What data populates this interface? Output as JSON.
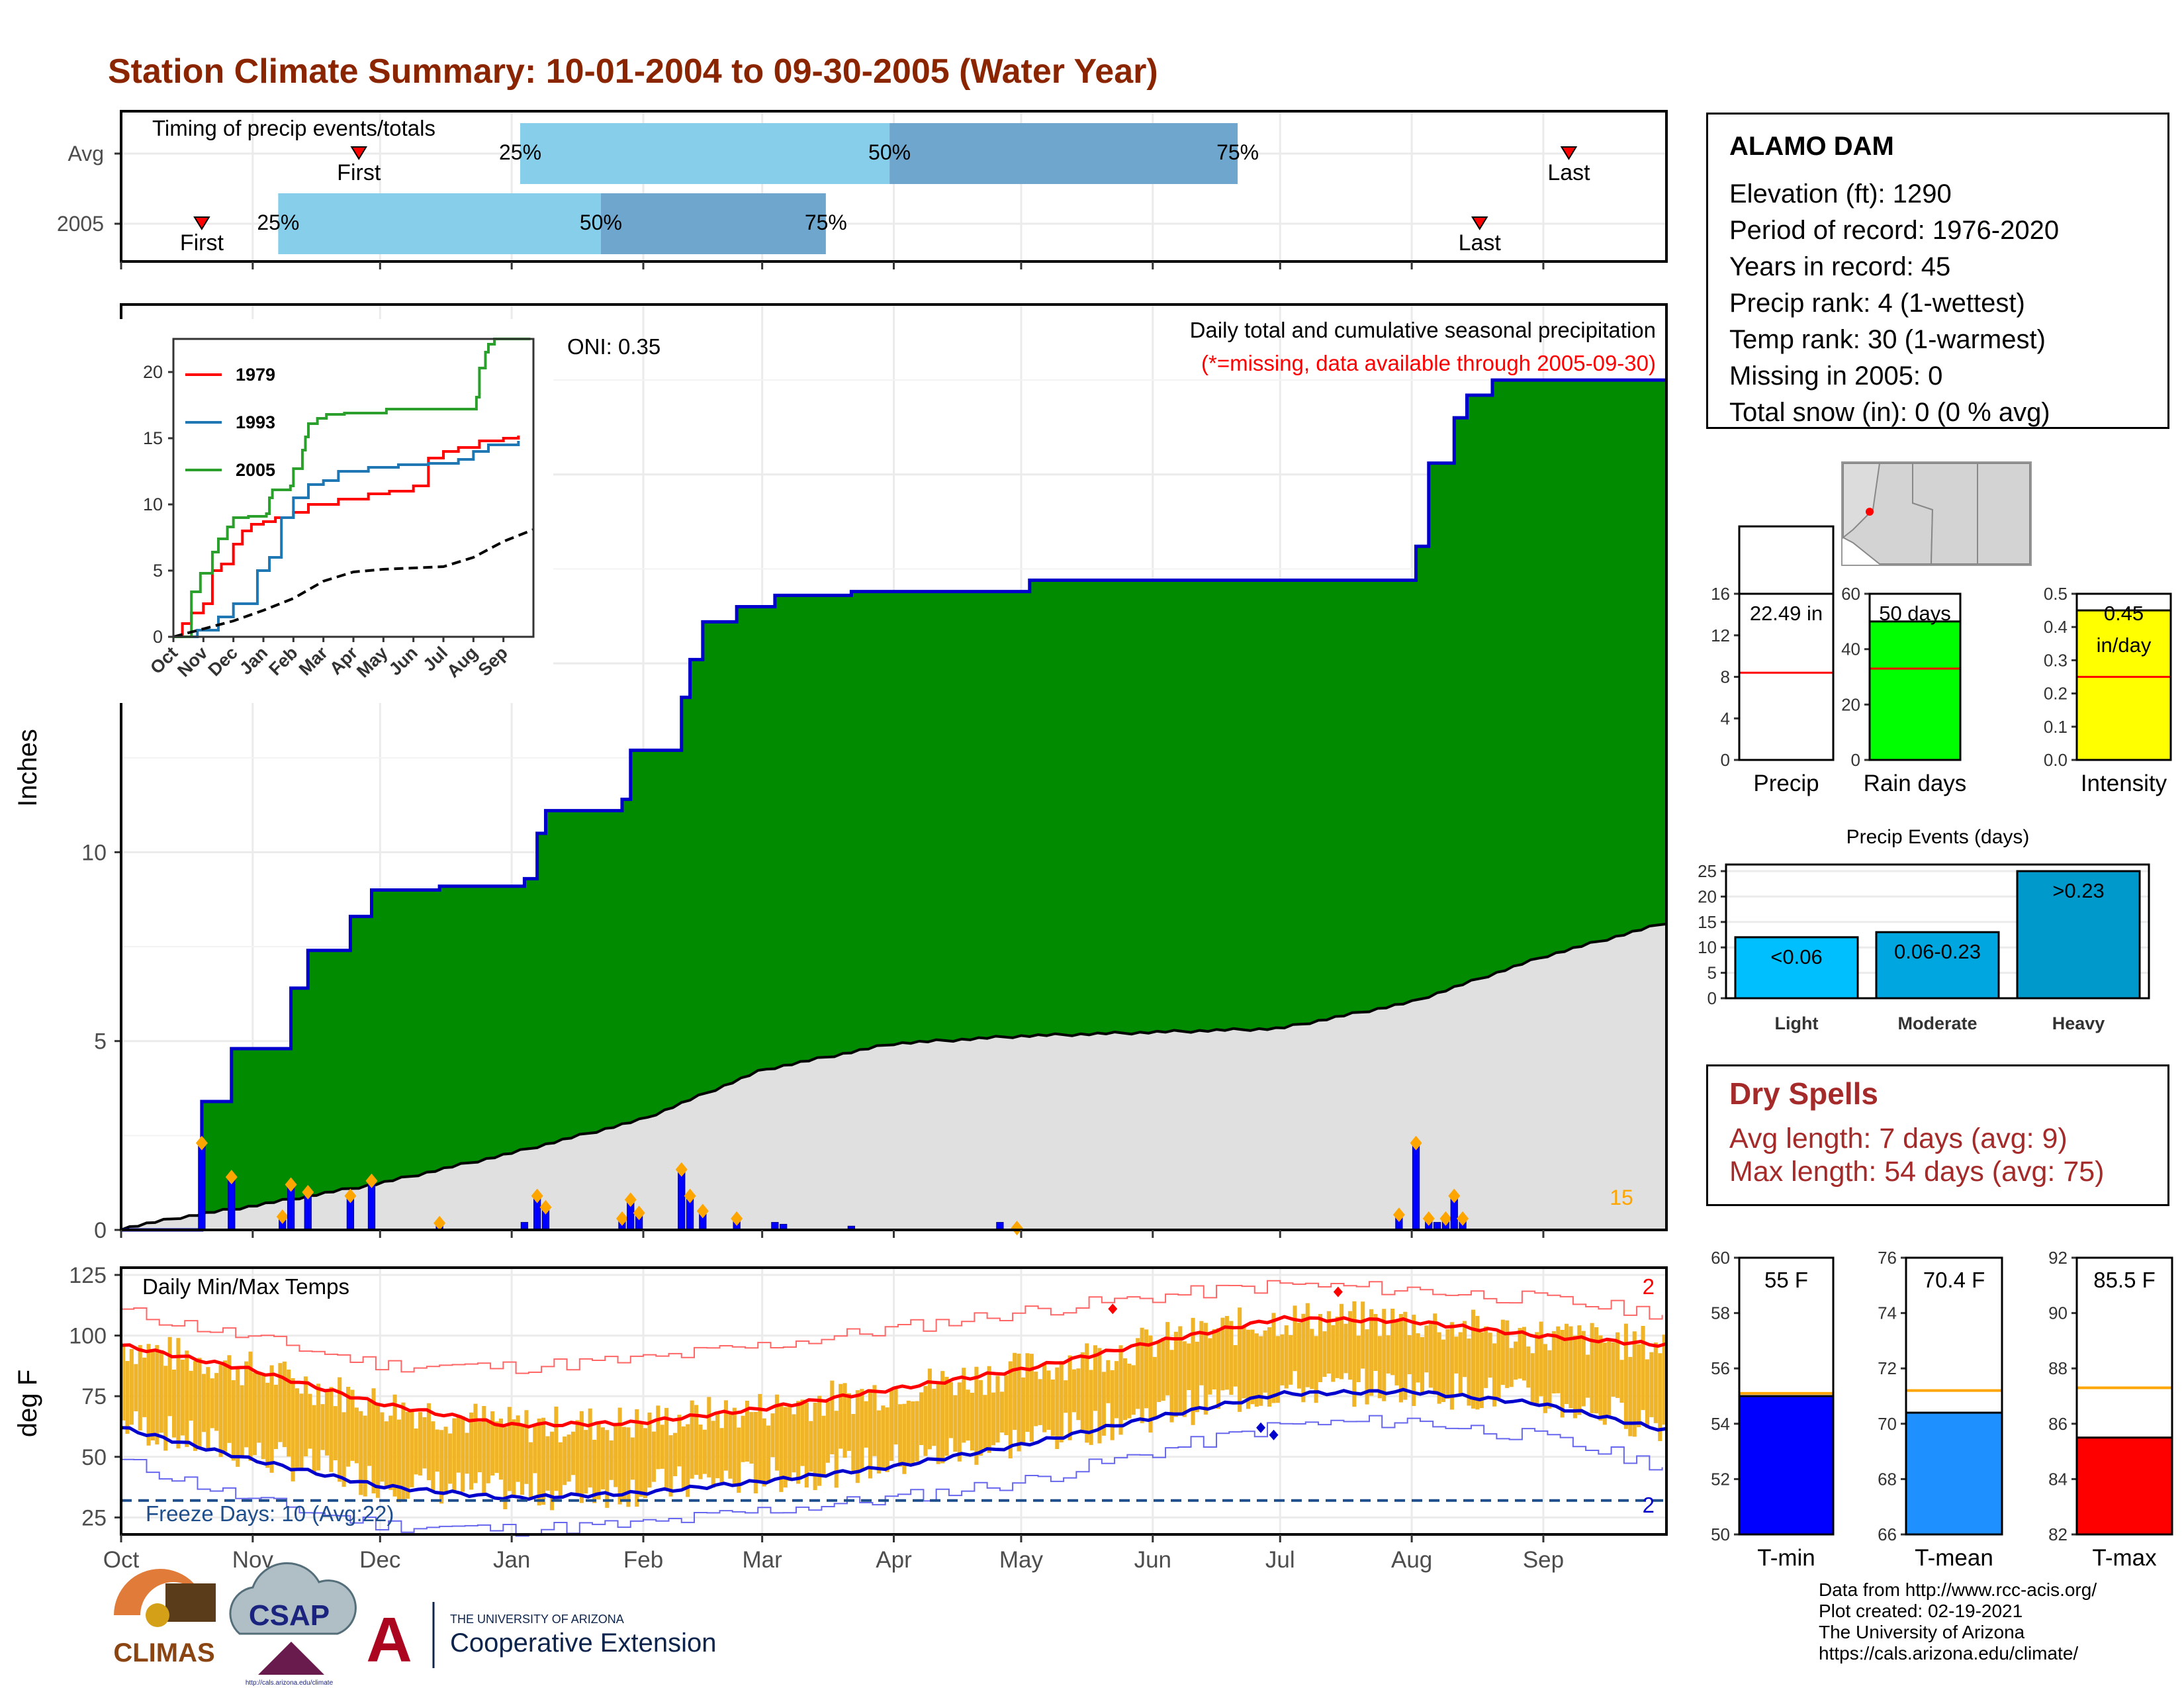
{
  "title": "Station Climate Summary: 10-01-2004 to 09-30-2005 (Water Year)",
  "timing": {
    "title": "Timing of precip events/totals",
    "rows": [
      {
        "label": "Avg",
        "first": "First",
        "last": "Last",
        "first_date": "2004-11-26",
        "q25_date": "2005-01-03",
        "q50_date": "2005-03-31",
        "q75_date": "2005-06-21",
        "last_date": "2005-09-07",
        "p25": "25%",
        "p50": "50%",
        "p75": "75%"
      },
      {
        "label": "2005",
        "first": "First",
        "last": "Last",
        "first_date": "2004-10-20",
        "q25_date": "2004-11-07",
        "q50_date": "2005-01-22",
        "q75_date": "2005-03-16",
        "last_date": "2005-08-17",
        "p25": "25%",
        "p50": "50%",
        "p75": "75%"
      }
    ],
    "colors": {
      "first_span": "#87ceeb",
      "second_span": "#6ea6cd",
      "marker": "#ff0000"
    }
  },
  "precip_panel": {
    "ylabel": "Inches",
    "annotation1": "Daily total and cumulative seasonal precipitation",
    "annotation2": "(*=missing, data available through 2005-09-30)",
    "oni": "ONI: 0.35",
    "count_label": "15",
    "colors": {
      "above_avg": "#008b00",
      "avg_fill": "#e0e0e0",
      "cum_line": "#0000cd",
      "bars": "#0000ff",
      "diamonds": "#ffa500",
      "below_avg": "#8b4513"
    }
  },
  "temp_panel": {
    "ylabel": "deg F",
    "title": "Daily Min/Max Temps",
    "freeze": "Freeze Days: 10 (Avg:22)",
    "record_high_count": "2",
    "record_low_count": "2",
    "colors": {
      "range": "#f0b429",
      "avg_max": "#ff0000",
      "avg_min": "#0000cd",
      "rec_max": "#ff6666",
      "rec_min": "#6666ee",
      "freeze": "#1f4e8c"
    }
  },
  "months": [
    "Oct",
    "Nov",
    "Dec",
    "Jan",
    "Feb",
    "Mar",
    "Apr",
    "May",
    "Jun",
    "Jul",
    "Aug",
    "Sep"
  ],
  "info": {
    "station": "ALAMO DAM",
    "rows": [
      "Elevation (ft): 1290",
      "Period of record: 1976-2020",
      "Years in record: 45",
      "Precip rank: 4 (1-wettest)",
      "Temp rank: 30 (1-warmest)",
      "Missing in 2005: 0",
      "Total snow (in): 0 (0 % avg)"
    ]
  },
  "mini_bars": [
    {
      "label": "Precip",
      "value": 22.49,
      "value_label": "22.49 in",
      "avg": 8.4,
      "ymax": 16,
      "ticks": [
        0,
        4,
        8,
        12,
        16
      ],
      "color": "#ffffff",
      "decimals": 0
    },
    {
      "label": "Rain days",
      "value": 50,
      "value_label": "50 days",
      "avg": 33,
      "ymax": 60,
      "ticks": [
        0,
        20,
        40,
        60
      ],
      "color": "#00ff00",
      "decimals": 0
    },
    {
      "label": "Intensity",
      "value": 0.45,
      "value_label": "0.45 in/day",
      "avg": 0.25,
      "ymax": 0.5,
      "ticks": [
        0.0,
        0.1,
        0.2,
        0.3,
        0.4,
        0.5
      ],
      "color": "#ffff00",
      "decimals": 1
    }
  ],
  "precip_events": {
    "title": "Precip Events (days)",
    "categories": [
      "Light",
      "Moderate",
      "Heavy"
    ],
    "values": [
      12,
      13,
      25
    ],
    "labels": [
      "<0.06",
      "0.06-0.23",
      ">0.23"
    ],
    "ticks": [
      0,
      5,
      10,
      15,
      20,
      25
    ],
    "colors": [
      "#00bfff",
      "#00a6e0",
      "#0099cc"
    ]
  },
  "dry_spells": {
    "title": "Dry Spells",
    "avg": "Avg length: 7 days (avg: 9)",
    "max": "Max length: 54 days (avg: 75)"
  },
  "temp_bars": [
    {
      "label": "T-min",
      "value": 55.0,
      "value_label": "55 F",
      "avg": 55.1,
      "ymin": 50,
      "ymax": 60,
      "ticks": [
        50,
        52,
        54,
        56,
        58,
        60
      ],
      "color": "#0000ff"
    },
    {
      "label": "T-mean",
      "value": 70.4,
      "value_label": "70.4 F",
      "avg": 71.2,
      "ymin": 66,
      "ymax": 76,
      "ticks": [
        66,
        68,
        70,
        72,
        74,
        76
      ],
      "color": "#1e90ff"
    },
    {
      "label": "T-max",
      "value": 85.5,
      "value_label": "85.5 F",
      "avg": 87.3,
      "ymin": 82,
      "ymax": 92,
      "ticks": [
        82,
        84,
        86,
        88,
        90,
        92
      ],
      "color": "#ff0000"
    }
  ],
  "credits": [
    "Data from http://www.rcc-acis.org/",
    "Plot created: 02-19-2021",
    "The University of Arizona",
    "https://cals.arizona.edu/climate/"
  ],
  "logos": {
    "climas": "CLIMAS",
    "csap": "CSAP",
    "csap_url": "http://cals.arizona.edu/climate",
    "ua_small": "THE UNIVERSITY OF ARIZONA",
    "ua_big": "Cooperative Extension"
  },
  "chart_data": [
    {
      "type": "area",
      "name": "cumulative_precip",
      "x_start": "2004-10-01",
      "x_end": "2005-09-30",
      "ylabel": "Inches",
      "ylim": [
        0,
        24.5
      ],
      "yticks": [
        0,
        5,
        10,
        15,
        20
      ],
      "cumulative_2005": [
        [
          "2004-10-01",
          0
        ],
        [
          "2004-10-20",
          3.4
        ],
        [
          "2004-10-27",
          4.8
        ],
        [
          "2004-11-10",
          6.4
        ],
        [
          "2004-11-14",
          7.4
        ],
        [
          "2004-11-24",
          8.3
        ],
        [
          "2004-11-29",
          9.0
        ],
        [
          "2004-12-15",
          9.1
        ],
        [
          "2005-01-04",
          9.3
        ],
        [
          "2005-01-07",
          10.5
        ],
        [
          "2005-01-09",
          11.1
        ],
        [
          "2005-01-27",
          11.4
        ],
        [
          "2005-01-29",
          12.7
        ],
        [
          "2005-02-10",
          14.1
        ],
        [
          "2005-02-12",
          15.1
        ],
        [
          "2005-02-15",
          16.1
        ],
        [
          "2005-02-23",
          16.5
        ],
        [
          "2005-03-04",
          16.8
        ],
        [
          "2005-03-22",
          16.9
        ],
        [
          "2005-05-03",
          17.2
        ],
        [
          "2005-07-31",
          17.2
        ],
        [
          "2005-08-02",
          18.1
        ],
        [
          "2005-08-05",
          20.3
        ],
        [
          "2005-08-11",
          21.5
        ],
        [
          "2005-08-14",
          22.1
        ],
        [
          "2005-08-20",
          22.5
        ],
        [
          "2005-09-30",
          22.5
        ]
      ],
      "average_cumulative": [
        [
          "2004-10-01",
          0
        ],
        [
          "2004-10-15",
          0.3
        ],
        [
          "2004-11-01",
          0.6
        ],
        [
          "2004-12-01",
          1.2
        ],
        [
          "2005-01-01",
          2.0
        ],
        [
          "2005-02-01",
          2.9
        ],
        [
          "2005-03-01",
          4.2
        ],
        [
          "2005-04-01",
          4.9
        ],
        [
          "2005-05-01",
          5.1
        ],
        [
          "2005-06-01",
          5.2
        ],
        [
          "2005-07-01",
          5.3
        ],
        [
          "2005-08-01",
          6.0
        ],
        [
          "2005-09-01",
          7.2
        ],
        [
          "2005-09-30",
          8.1
        ]
      ],
      "daily": [
        [
          "2004-10-20",
          2.3
        ],
        [
          "2004-10-27",
          1.4
        ],
        [
          "2004-11-08",
          0.35
        ],
        [
          "2004-11-10",
          1.2
        ],
        [
          "2004-11-14",
          1.0
        ],
        [
          "2004-11-24",
          0.9
        ],
        [
          "2004-11-29",
          1.3
        ],
        [
          "2004-12-15",
          0.2
        ],
        [
          "2005-01-04",
          0.2
        ],
        [
          "2005-01-07",
          0.9
        ],
        [
          "2005-01-09",
          0.6
        ],
        [
          "2005-01-27",
          0.3
        ],
        [
          "2005-01-29",
          0.8
        ],
        [
          "2005-01-31",
          0.45
        ],
        [
          "2005-02-10",
          1.6
        ],
        [
          "2005-02-12",
          0.9
        ],
        [
          "2005-02-15",
          0.5
        ],
        [
          "2005-02-23",
          0.3
        ],
        [
          "2005-03-04",
          0.2
        ],
        [
          "2005-03-06",
          0.15
        ],
        [
          "2005-03-22",
          0.1
        ],
        [
          "2005-04-26",
          0.2
        ],
        [
          "2005-04-30",
          0.1
        ],
        [
          "2005-07-29",
          0.4
        ],
        [
          "2005-08-02",
          2.3
        ],
        [
          "2005-08-05",
          0.3
        ],
        [
          "2005-08-07",
          0.2
        ],
        [
          "2005-08-09",
          0.3
        ],
        [
          "2005-08-11",
          0.9
        ],
        [
          "2005-08-13",
          0.3
        ]
      ]
    },
    {
      "type": "line",
      "name": "inset_cumulative_comparison",
      "ylim": [
        0,
        22.5
      ],
      "yticks": [
        0,
        5,
        10,
        15,
        20
      ],
      "xticks": [
        "Oct",
        "Nov",
        "Dec",
        "Jan",
        "Feb",
        "Mar",
        "Apr",
        "May",
        "Jun",
        "Jul",
        "Aug",
        "Sep"
      ],
      "series": [
        {
          "name": "1979",
          "color": "#ff0000",
          "points": [
            [
              0,
              0
            ],
            [
              0.3,
              1.0
            ],
            [
              0.6,
              1.8
            ],
            [
              1.0,
              2.5
            ],
            [
              1.3,
              5.0
            ],
            [
              1.6,
              5.5
            ],
            [
              2.0,
              7.0
            ],
            [
              2.3,
              8.0
            ],
            [
              2.6,
              8.5
            ],
            [
              3.0,
              8.7
            ],
            [
              3.4,
              9.0
            ],
            [
              4.0,
              9.4
            ],
            [
              4.5,
              10.0
            ],
            [
              5.5,
              10.4
            ],
            [
              6.5,
              10.8
            ],
            [
              7.2,
              11.0
            ],
            [
              8.0,
              11.4
            ],
            [
              8.5,
              13.5
            ],
            [
              9.0,
              14.0
            ],
            [
              9.5,
              14.3
            ],
            [
              10.2,
              14.8
            ],
            [
              11.0,
              15.0
            ],
            [
              11.5,
              15.2
            ]
          ]
        },
        {
          "name": "1993",
          "color": "#1f77b4",
          "points": [
            [
              0,
              0
            ],
            [
              0.8,
              0.5
            ],
            [
              1.5,
              1.5
            ],
            [
              2.0,
              2.5
            ],
            [
              2.8,
              5.0
            ],
            [
              3.2,
              6.0
            ],
            [
              3.6,
              9.0
            ],
            [
              4.0,
              10.5
            ],
            [
              4.5,
              11.5
            ],
            [
              5.0,
              11.8
            ],
            [
              5.5,
              12.5
            ],
            [
              6.5,
              12.8
            ],
            [
              7.5,
              13.0
            ],
            [
              8.5,
              13.1
            ],
            [
              9.5,
              13.4
            ],
            [
              10.0,
              14.0
            ],
            [
              10.5,
              14.5
            ],
            [
              11.5,
              14.8
            ]
          ]
        },
        {
          "name": "2005",
          "color": "#2ca02c",
          "points": [
            [
              0,
              0
            ],
            [
              0.6,
              3.4
            ],
            [
              0.9,
              4.8
            ],
            [
              1.3,
              6.4
            ],
            [
              1.5,
              7.4
            ],
            [
              1.8,
              8.3
            ],
            [
              2.0,
              9.0
            ],
            [
              2.5,
              9.1
            ],
            [
              3.1,
              9.3
            ],
            [
              3.2,
              10.5
            ],
            [
              3.3,
              11.1
            ],
            [
              3.9,
              11.4
            ],
            [
              4.0,
              12.7
            ],
            [
              4.3,
              14.1
            ],
            [
              4.4,
              15.1
            ],
            [
              4.5,
              16.1
            ],
            [
              4.8,
              16.5
            ],
            [
              5.1,
              16.8
            ],
            [
              5.7,
              16.9
            ],
            [
              7.1,
              17.2
            ],
            [
              10.0,
              17.2
            ],
            [
              10.1,
              18.1
            ],
            [
              10.2,
              20.3
            ],
            [
              10.4,
              21.5
            ],
            [
              10.5,
              22.1
            ],
            [
              10.7,
              22.5
            ],
            [
              11.9,
              22.5
            ]
          ]
        },
        {
          "name": "average",
          "color": "#000000",
          "dashed": true,
          "points": [
            [
              0,
              0
            ],
            [
              1,
              0.6
            ],
            [
              2,
              1.2
            ],
            [
              3,
              2.0
            ],
            [
              4,
              2.9
            ],
            [
              5,
              4.2
            ],
            [
              6,
              4.9
            ],
            [
              7,
              5.1
            ],
            [
              8,
              5.2
            ],
            [
              9,
              5.3
            ],
            [
              10,
              6.0
            ],
            [
              11,
              7.2
            ],
            [
              12,
              8.1
            ]
          ]
        }
      ]
    },
    {
      "type": "line",
      "name": "daily_temperatures",
      "ylabel": "deg F",
      "ylim": [
        18,
        128
      ],
      "yticks": [
        25,
        50,
        75,
        100,
        125
      ],
      "freeze_line": 32,
      "avg_max": [
        [
          0,
          96
        ],
        [
          1,
          86
        ],
        [
          2,
          72
        ],
        [
          3,
          63
        ],
        [
          4,
          64
        ],
        [
          5,
          70
        ],
        [
          6,
          78
        ],
        [
          7,
          86
        ],
        [
          8,
          97
        ],
        [
          9,
          107
        ],
        [
          10,
          106
        ],
        [
          11,
          100
        ],
        [
          12,
          96
        ]
      ],
      "avg_min": [
        [
          0,
          62
        ],
        [
          1,
          49
        ],
        [
          2,
          38
        ],
        [
          3,
          33
        ],
        [
          4,
          35
        ],
        [
          5,
          40
        ],
        [
          6,
          46
        ],
        [
          7,
          55
        ],
        [
          8,
          66
        ],
        [
          9,
          76
        ],
        [
          10,
          77
        ],
        [
          11,
          72
        ],
        [
          12,
          61
        ]
      ],
      "record_max": [
        [
          0,
          110
        ],
        [
          1,
          99
        ],
        [
          2,
          88
        ],
        [
          3,
          87
        ],
        [
          4,
          90
        ],
        [
          5,
          96
        ],
        [
          6,
          103
        ],
        [
          7,
          110
        ],
        [
          8,
          116
        ],
        [
          9,
          121
        ],
        [
          10,
          119
        ],
        [
          11,
          115
        ],
        [
          12,
          109
        ]
      ],
      "record_min": [
        [
          0,
          48
        ],
        [
          1,
          32
        ],
        [
          2,
          22
        ],
        [
          3,
          20
        ],
        [
          4,
          22
        ],
        [
          5,
          28
        ],
        [
          6,
          33
        ],
        [
          7,
          40
        ],
        [
          8,
          52
        ],
        [
          9,
          63
        ],
        [
          10,
          65
        ],
        [
          11,
          58
        ],
        [
          12,
          46
        ]
      ],
      "records_broken": {
        "high": [
          [
            7.7,
            111
          ],
          [
            9.45,
            118
          ]
        ],
        "low": [
          [
            8.85,
            62
          ],
          [
            8.95,
            59
          ]
        ]
      }
    }
  ]
}
